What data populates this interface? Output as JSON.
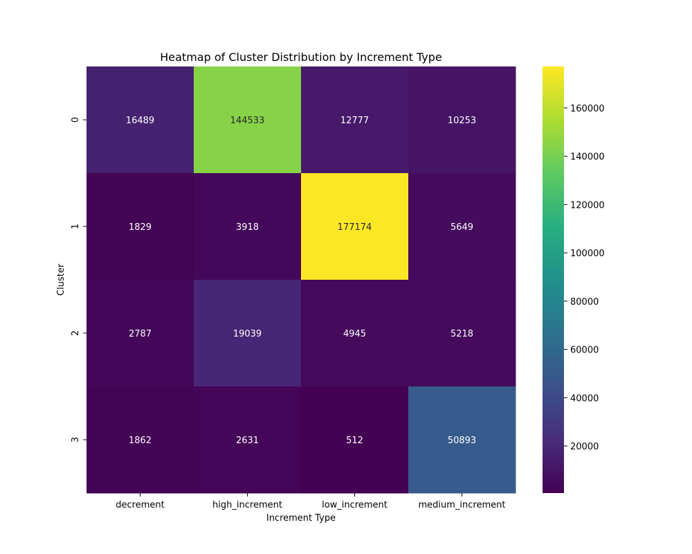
{
  "chart_data": {
    "type": "heatmap",
    "title": "Heatmap of Cluster Distribution by Increment Type",
    "xlabel": "Increment Type",
    "ylabel": "Cluster",
    "x_categories": [
      "decrement",
      "high_increment",
      "low_increment",
      "medium_increment"
    ],
    "y_categories": [
      "0",
      "1",
      "2",
      "3"
    ],
    "values": [
      [
        16489,
        144533,
        12777,
        10253
      ],
      [
        1829,
        3918,
        177174,
        5649
      ],
      [
        2787,
        19039,
        4945,
        5218
      ],
      [
        1862,
        2631,
        512,
        50893
      ]
    ],
    "colormap": "viridis",
    "colorbar": {
      "min": 512,
      "max": 177174,
      "ticks": [
        20000,
        40000,
        60000,
        80000,
        100000,
        120000,
        140000,
        160000
      ],
      "tick_labels": [
        "20000",
        "40000",
        "60000",
        "80000",
        "100000",
        "120000",
        "140000",
        "160000"
      ]
    },
    "annotation_colors": {
      "dark": "#262626",
      "light": "#ffffff"
    }
  }
}
